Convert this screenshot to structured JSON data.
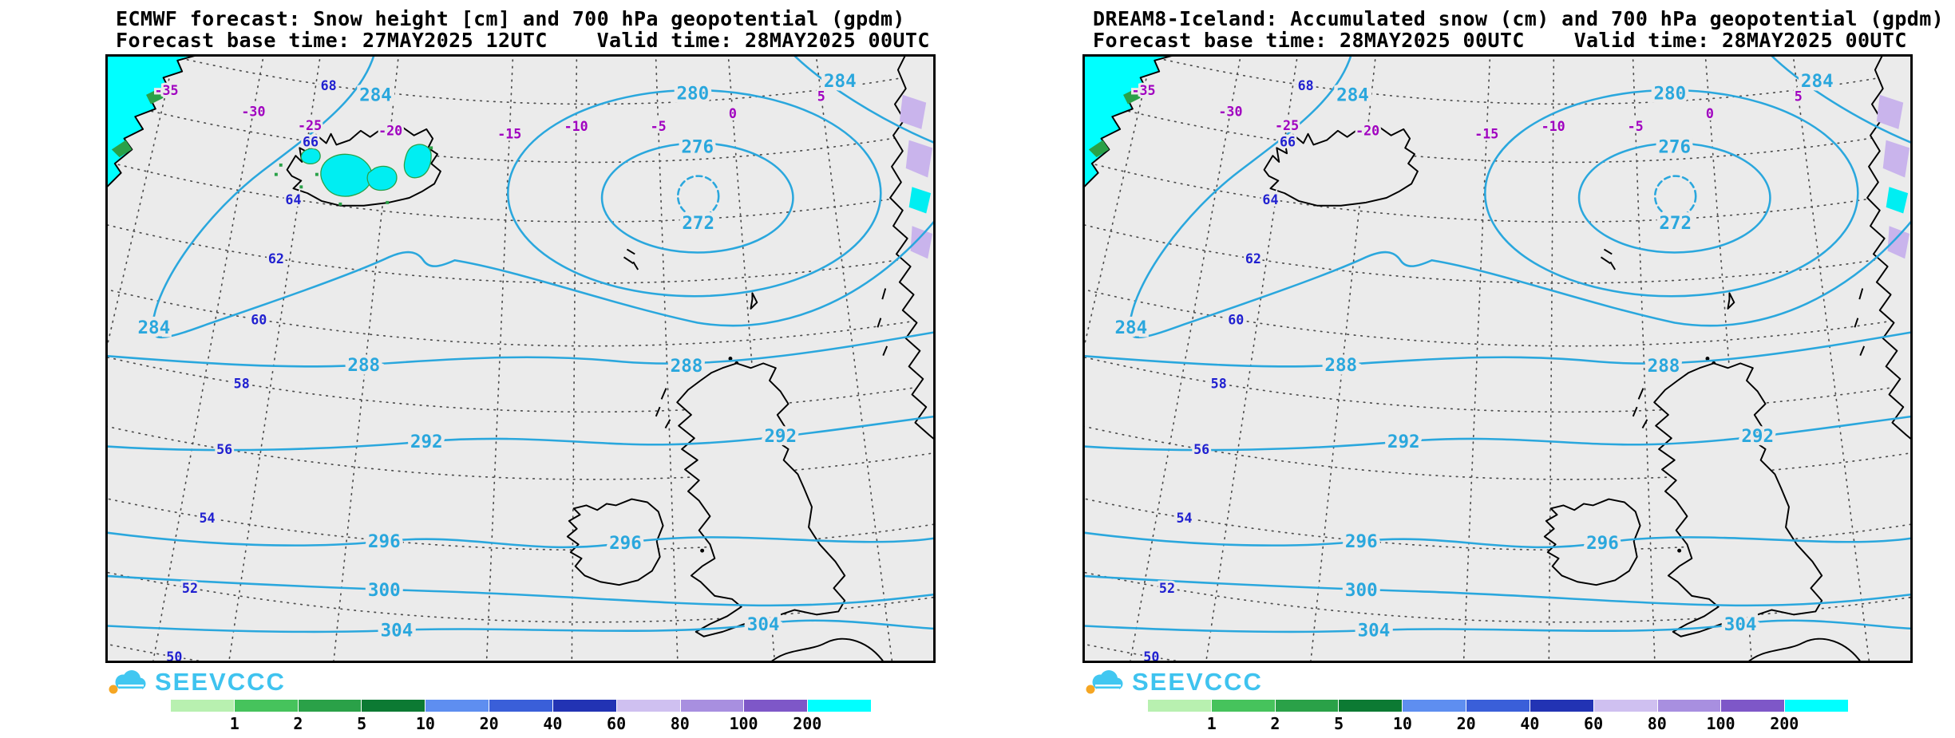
{
  "logo": {
    "text": "SEEVCCC",
    "cloud_color": "#41c7f1",
    "sun_color": "#f5a623"
  },
  "panels": [
    {
      "model": "ECMWF",
      "title_line1": "ECMWF forecast: Snow height [cm] and 700 hPa geopotential (gpdm)",
      "title_line2": "Forecast base time: 27MAY2025 12UTC    Valid time: 28MAY2025 00UTC"
    },
    {
      "model": "DREAM8-Iceland",
      "title_line1": "DREAM8-Iceland: Accumulated snow (cm) and 700 hPa geopotential (gpdm)",
      "title_line2": "Forecast base time: 28MAY2025 00UTC    Valid time: 28MAY2025 00UTC"
    }
  ],
  "colorbar": {
    "labels": [
      "1",
      "2",
      "5",
      "10",
      "20",
      "40",
      "60",
      "80",
      "100",
      "200"
    ],
    "segment_colors": [
      "#b8f0b0",
      "#46c35c",
      "#2aa148",
      "#0c7a33",
      "#5e8ef0",
      "#3a5fd9",
      "#2233b4",
      "#cfc0f0",
      "#a88fe0",
      "#7e57c8",
      "#00ffff"
    ]
  },
  "map_colors": {
    "background": "#ebebeb",
    "contour": "#2aa7dd",
    "snow_fill": "#00eef2",
    "greenland_snow": "#00ffff",
    "norway_patch": "#c9b4ec",
    "green_patch": "#2aa148",
    "lat_label": "#2020d0",
    "lon_label": "#a000c0"
  },
  "chart_data": [
    {
      "type": "contour-map",
      "panel": "left",
      "model": "ECMWF",
      "shaded_field": "Snow height [cm]",
      "contour_field": "700 hPa geopotential (gpdm)",
      "forecast_base_time": "27MAY2025 12UTC",
      "valid_time": "28MAY2025 00UTC",
      "contour_levels_gpdm": [
        272,
        276,
        280,
        284,
        288,
        292,
        296,
        300,
        304
      ],
      "contour_labels_drawn": [
        "284",
        "280",
        "276",
        "272",
        "284",
        "288",
        "288",
        "292",
        "292",
        "296",
        "296",
        "300",
        "304",
        "304",
        "284"
      ],
      "low_center": {
        "value_gpdm": 272,
        "location": "east-northeast of Iceland"
      },
      "latitude_labels_deg": [
        "68",
        "66",
        "64",
        "62",
        "60",
        "58",
        "56",
        "54",
        "52",
        "50"
      ],
      "longitude_labels_deg": [
        "-35",
        "-30",
        "-25",
        "-20",
        "-15",
        "-10",
        "-5",
        "0",
        "5"
      ],
      "snow_scale_cm": [
        "1",
        "2",
        "5",
        "10",
        "20",
        "40",
        "60",
        "80",
        "100",
        "200"
      ],
      "iceland_snow_shading": true,
      "snow_shading": "Cyan snow patches over central Iceland, Greenland coast fully shaded, purple/cyan patches on Norwegian coastal mountains"
    },
    {
      "type": "contour-map",
      "panel": "right",
      "model": "DREAM8-Iceland",
      "shaded_field": "Accumulated snow (cm)",
      "contour_field": "700 hPa geopotential (gpdm)",
      "forecast_base_time": "28MAY2025 00UTC",
      "valid_time": "28MAY2025 00UTC",
      "contour_levels_gpdm": [
        272,
        276,
        280,
        284,
        288,
        292,
        296,
        300,
        304
      ],
      "contour_labels_drawn": [
        "284",
        "280",
        "276",
        "272",
        "284",
        "288",
        "288",
        "292",
        "292",
        "296",
        "296",
        "300",
        "304",
        "304",
        "284"
      ],
      "low_center": {
        "value_gpdm": 272,
        "location": "east-northeast of Iceland"
      },
      "latitude_labels_deg": [
        "68",
        "66",
        "64",
        "62",
        "60",
        "58",
        "56",
        "54",
        "52",
        "50"
      ],
      "longitude_labels_deg": [
        "-35",
        "-30",
        "-25",
        "-20",
        "-15",
        "-10",
        "-5",
        "0",
        "5"
      ],
      "snow_scale_cm": [
        "1",
        "2",
        "5",
        "10",
        "20",
        "40",
        "60",
        "80",
        "100",
        "200"
      ],
      "iceland_snow_shading": false,
      "snow_shading": "Greenland coast and Norwegian coastal mountains shaded; no accumulated-snow shading over Iceland"
    }
  ]
}
